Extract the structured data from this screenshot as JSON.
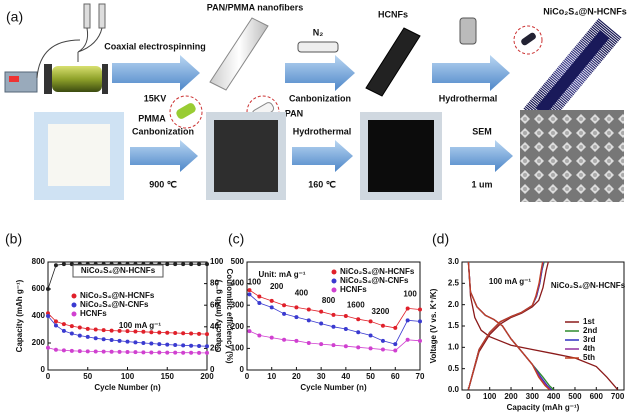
{
  "figure": {
    "panel_a": {
      "label": "(a)",
      "step1": "Coaxial electrospinning",
      "voltage": "15KV",
      "fibers": "PAN/PMMA nanofibers",
      "pmma": "PMMA",
      "pan": "PAN",
      "gas": "N₂",
      "step2": "Canbonization",
      "hcnfs": "HCNFs",
      "step3": "Hydrothermal",
      "product": "NiCo₂S₄@N-HCNFs",
      "row2": {
        "step1": "Canbonization",
        "temp1": "900 ℃",
        "step2": "Hydrothermal",
        "temp2": "160 ℃",
        "step3": "SEM",
        "scale": "1 um"
      }
    }
  },
  "chart_data": [
    {
      "type": "line",
      "panel_label": "(b)",
      "annotation": "100 mA g⁻¹",
      "xlabel": "Cycle Number (n)",
      "ylabel": "Capacity (mAh g⁻¹)",
      "y2label": "Coulombic efficiency (%)",
      "x": [
        0,
        10,
        20,
        30,
        40,
        50,
        60,
        70,
        80,
        90,
        100,
        110,
        120,
        130,
        140,
        150,
        160,
        170,
        180,
        190,
        200
      ],
      "series": [
        {
          "name": "NiCo₂S₄@N-HCNFs",
          "color": "#e0202a",
          "values": [
            420,
            360,
            340,
            325,
            315,
            305,
            300,
            295,
            292,
            290,
            288,
            285,
            283,
            280,
            278,
            276,
            274,
            272,
            270,
            268,
            266
          ]
        },
        {
          "name": "NiCo₂S₄@N-CNFs",
          "color": "#3a3ad0",
          "values": [
            400,
            330,
            290,
            270,
            255,
            245,
            235,
            228,
            222,
            216,
            210,
            205,
            200,
            196,
            192,
            188,
            185,
            182,
            180,
            178,
            176
          ]
        },
        {
          "name": "HCNFs",
          "color": "#d040d0",
          "values": [
            165,
            150,
            145,
            142,
            140,
            138,
            137,
            136,
            135,
            134,
            133,
            132,
            131,
            130,
            130,
            129,
            129,
            128,
            128,
            127,
            127
          ]
        },
        {
          "name": "NiCo₂S₄@N-HCNFs",
          "color": "#222222",
          "axis": "y2",
          "values": [
            75,
            97,
            98,
            98,
            98,
            98,
            98,
            98,
            98,
            98,
            98,
            98,
            98,
            98,
            98,
            98,
            98,
            98,
            98,
            98,
            98
          ]
        }
      ],
      "xlim": [
        0,
        200
      ],
      "xticks": [
        0,
        50,
        100,
        150,
        200
      ],
      "ylim": [
        0,
        800
      ],
      "yticks": [
        0,
        200,
        400,
        600,
        800
      ],
      "y2lim": [
        0,
        100
      ],
      "y2ticks": [
        0,
        20,
        40,
        60,
        80,
        100
      ],
      "markers": true
    },
    {
      "type": "line",
      "panel_label": "(c)",
      "annotation": "Unit: mA g⁻¹",
      "xlabel": "Cycle Number (n)",
      "ylabel": "Capacity (mAh g⁻¹)",
      "rate_labels": [
        100,
        200,
        400,
        800,
        1600,
        3200,
        100
      ],
      "x": [
        1,
        5,
        10,
        15,
        20,
        25,
        30,
        35,
        40,
        45,
        50,
        55,
        60,
        65,
        70
      ],
      "series": [
        {
          "name": "NiCo₂S₄@N-HCNFs",
          "color": "#e0202a",
          "values": [
            370,
            340,
            320,
            300,
            290,
            280,
            270,
            255,
            250,
            235,
            225,
            205,
            195,
            285,
            280
          ]
        },
        {
          "name": "NiCo₂S₄@N-CNFs",
          "color": "#3a3ad0",
          "values": [
            350,
            310,
            290,
            260,
            245,
            230,
            215,
            200,
            190,
            175,
            160,
            135,
            120,
            230,
            225
          ]
        },
        {
          "name": "HCNFs",
          "color": "#d040d0",
          "values": [
            180,
            160,
            150,
            140,
            135,
            125,
            120,
            115,
            110,
            105,
            100,
            95,
            90,
            140,
            135
          ]
        }
      ],
      "xlim": [
        0,
        70
      ],
      "xticks": [
        0,
        10,
        20,
        30,
        40,
        50,
        60,
        70
      ],
      "ylim": [
        0,
        500
      ],
      "yticks": [
        0,
        100,
        200,
        300,
        400,
        500
      ],
      "markers": true
    },
    {
      "type": "line",
      "panel_label": "(d)",
      "title": "NiCo₂S₄@N-HCNFs",
      "annotation": "100 mA g⁻¹",
      "xlabel": "Capacity (mAh g⁻¹)",
      "ylabel": "Voltage (V vs. K⁺/K)",
      "series": [
        {
          "name": "1st",
          "color": "#8b1a1a",
          "x": [
            0,
            10,
            30,
            60,
            100,
            200,
            300,
            400,
            500,
            600,
            650,
            700,
            null,
            0,
            50,
            100,
            150,
            200,
            250,
            300,
            330,
            350,
            365,
            375
          ],
          "values": [
            3.0,
            2.2,
            1.7,
            1.4,
            1.25,
            1.05,
            0.95,
            0.85,
            0.75,
            0.55,
            0.3,
            0.01,
            null,
            0.01,
            0.9,
            1.3,
            1.55,
            1.7,
            1.8,
            1.95,
            2.1,
            2.4,
            2.8,
            3.0
          ]
        },
        {
          "name": "2nd",
          "color": "#2e8b2e",
          "x": [
            0,
            10,
            40,
            80,
            120,
            160,
            200,
            250,
            300,
            350,
            380,
            400,
            null,
            0,
            50,
            100,
            150,
            200,
            250,
            300,
            320,
            335,
            345,
            355
          ],
          "values": [
            3.0,
            2.3,
            1.95,
            1.75,
            1.65,
            1.5,
            1.2,
            0.9,
            0.6,
            0.3,
            0.1,
            0.01,
            null,
            0.01,
            0.95,
            1.35,
            1.6,
            1.72,
            1.82,
            1.98,
            2.2,
            2.5,
            2.8,
            3.0
          ]
        },
        {
          "name": "3rd",
          "color": "#3030c0",
          "x": [
            0,
            10,
            40,
            80,
            120,
            160,
            200,
            250,
            300,
            340,
            370,
            390,
            null,
            0,
            50,
            100,
            150,
            200,
            250,
            300,
            320,
            335,
            345,
            352
          ],
          "values": [
            3.0,
            2.3,
            1.95,
            1.75,
            1.65,
            1.5,
            1.2,
            0.9,
            0.6,
            0.3,
            0.1,
            0.01,
            null,
            0.01,
            0.95,
            1.35,
            1.6,
            1.72,
            1.82,
            1.98,
            2.2,
            2.5,
            2.8,
            3.0
          ]
        },
        {
          "name": "4th",
          "color": "#9030a0",
          "x": [
            0,
            10,
            40,
            80,
            120,
            160,
            200,
            250,
            300,
            335,
            365,
            385,
            null,
            0,
            50,
            100,
            150,
            200,
            250,
            300,
            318,
            333,
            343,
            350
          ],
          "values": [
            3.0,
            2.3,
            1.95,
            1.75,
            1.65,
            1.5,
            1.2,
            0.9,
            0.6,
            0.3,
            0.1,
            0.01,
            null,
            0.01,
            0.95,
            1.35,
            1.6,
            1.72,
            1.82,
            1.98,
            2.2,
            2.5,
            2.8,
            3.0
          ]
        },
        {
          "name": "5th",
          "color": "#c04020",
          "x": [
            0,
            10,
            40,
            80,
            120,
            160,
            200,
            250,
            300,
            330,
            360,
            380,
            null,
            0,
            50,
            100,
            150,
            200,
            250,
            300,
            316,
            331,
            341,
            348
          ],
          "values": [
            3.0,
            2.3,
            1.95,
            1.75,
            1.65,
            1.5,
            1.2,
            0.9,
            0.6,
            0.3,
            0.1,
            0.01,
            null,
            0.01,
            0.95,
            1.35,
            1.6,
            1.72,
            1.82,
            1.98,
            2.2,
            2.5,
            2.8,
            3.0
          ]
        }
      ],
      "xlim": [
        -30,
        730
      ],
      "xticks": [
        0,
        100,
        200,
        300,
        400,
        500,
        600,
        700
      ],
      "ylim": [
        0,
        3.0
      ],
      "yticks": [
        {
          "value": 0,
          "label": "0.0"
        },
        0.5,
        {
          "value": 1,
          "label": "1.0"
        },
        1.5,
        {
          "value": 2,
          "label": "2.0"
        },
        2.5,
        {
          "value": 3,
          "label": "3.0"
        }
      ],
      "markers": false
    }
  ]
}
